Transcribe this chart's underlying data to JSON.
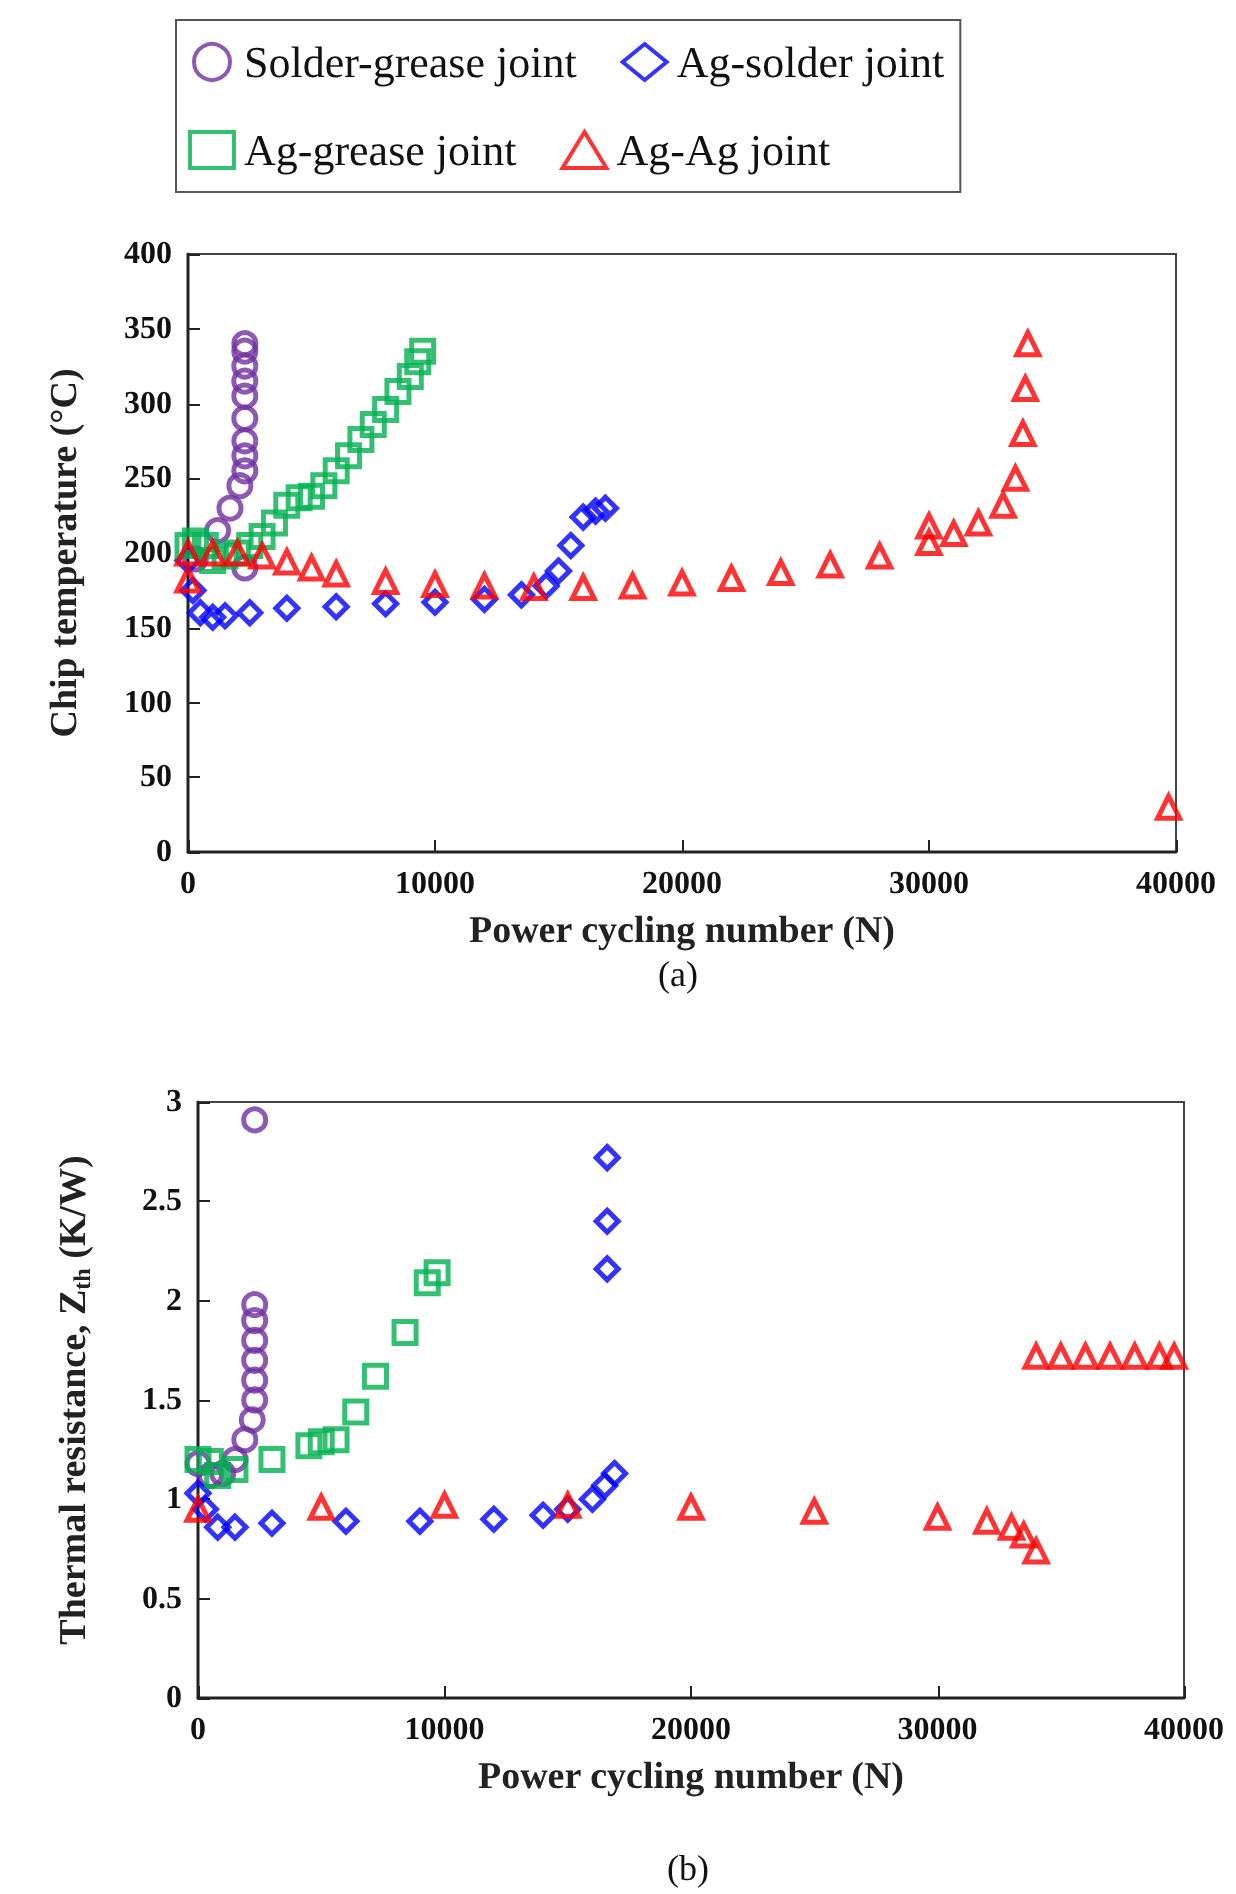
{
  "chart_data": [
    {
      "type": "scatter",
      "xlabel": "Power cycling number (N)",
      "ylabel": "Chip temperature (°C)",
      "legend": "top",
      "grid": false,
      "annotations": [
        "(a)"
      ],
      "xlim": [
        0,
        40000
      ],
      "xticks": [
        0,
        10000,
        20000,
        30000,
        40000
      ],
      "ylim": [
        0,
        400
      ],
      "yticks": [
        0,
        50,
        100,
        150,
        200,
        250,
        300,
        350,
        400
      ],
      "series": [
        {
          "name": "Solder-grease joint",
          "color": "#7030a0",
          "marker": "circle",
          "x": [
            300,
            1200,
            1700,
            2100,
            2300,
            2300,
            2300,
            2300,
            2300,
            2300,
            2300,
            2300,
            2300,
            2300
          ],
          "values": [
            196,
            215,
            230,
            245,
            255,
            265,
            275,
            290,
            305,
            315,
            325,
            335,
            340,
            190
          ]
        },
        {
          "name": "Ag-solder joint",
          "color": "#0000ff",
          "marker": "diamond",
          "x": [
            0,
            200,
            500,
            1000,
            1500,
            2500,
            4000,
            6000,
            8000,
            10000,
            12000,
            13500,
            14500,
            15000,
            15500,
            16000,
            16500,
            16900
          ],
          "values": [
            195,
            175,
            160,
            157,
            158,
            160,
            163,
            164,
            166,
            167,
            169,
            172,
            178,
            188,
            205,
            224,
            228,
            230
          ]
        },
        {
          "name": "Ag-grease joint",
          "color": "#00b050",
          "marker": "square",
          "x": [
            0,
            300,
            700,
            1000,
            1500,
            2000,
            2500,
            3000,
            3500,
            4000,
            4500,
            5000,
            5500,
            6000,
            6500,
            7000,
            7500,
            8000,
            8500,
            9000,
            9300,
            9500
          ],
          "values": [
            205,
            208,
            205,
            195,
            198,
            200,
            205,
            211,
            220,
            232,
            237,
            238,
            245,
            255,
            265,
            276,
            286,
            296,
            308,
            318,
            328,
            335
          ]
        },
        {
          "name": "Ag-Ag joint",
          "color": "#ff0000",
          "marker": "triangle",
          "x": [
            0,
            0,
            1000,
            2000,
            3000,
            4000,
            5000,
            6000,
            8000,
            10000,
            12000,
            14000,
            16000,
            18000,
            20000,
            22000,
            24000,
            26000,
            28000,
            30000,
            30000,
            31000,
            32000,
            33000,
            33500,
            33800,
            33900,
            34000,
            39700
          ],
          "values": [
            182,
            200,
            200,
            200,
            198,
            194,
            190,
            186,
            181,
            179,
            178,
            177,
            177,
            178,
            180,
            183,
            187,
            192,
            198,
            207,
            218,
            213,
            220,
            232,
            250,
            280,
            310,
            340,
            30
          ]
        }
      ]
    },
    {
      "type": "scatter",
      "xlabel": "Power cycling number (N)",
      "ylabel": "Thermal resistance, Z$_{th}$ (K/W)",
      "legend": false,
      "grid": false,
      "annotations": [
        "(b)"
      ],
      "xlim": [
        0,
        40000
      ],
      "xticks": [
        0,
        10000,
        20000,
        30000,
        40000
      ],
      "ylim": [
        0,
        3
      ],
      "yticks": [
        0,
        0.5,
        1,
        1.5,
        2,
        2.5,
        3
      ],
      "series": [
        {
          "color": "#7030a0",
          "marker": "circle",
          "x": [
            0,
            500,
            1000,
            1500,
            1900,
            2200,
            2300,
            2300,
            2300,
            2300,
            2300,
            2300,
            2300
          ],
          "values": [
            1.18,
            1.12,
            1.13,
            1.2,
            1.3,
            1.4,
            1.5,
            1.6,
            1.7,
            1.8,
            1.9,
            1.98,
            2.91
          ]
        },
        {
          "color": "#0000ff",
          "marker": "diamond",
          "x": [
            0,
            300,
            800,
            1500,
            3000,
            6000,
            9000,
            12000,
            14000,
            15000,
            16000,
            16500,
            16900,
            16600,
            16600,
            16600
          ],
          "values": [
            1.03,
            0.95,
            0.86,
            0.86,
            0.88,
            0.89,
            0.89,
            0.9,
            0.92,
            0.95,
            1.0,
            1.07,
            1.13,
            2.72,
            2.4,
            2.16
          ]
        },
        {
          "color": "#00b050",
          "marker": "square",
          "x": [
            0,
            500,
            800,
            1500,
            3000,
            4500,
            5000,
            5600,
            6400,
            7200,
            8400,
            9300,
            9700
          ],
          "values": [
            1.2,
            1.19,
            1.12,
            1.15,
            1.2,
            1.27,
            1.29,
            1.3,
            1.44,
            1.62,
            1.84,
            2.09,
            2.14
          ]
        },
        {
          "color": "#ff0000",
          "marker": "triangle",
          "x": [
            0,
            5000,
            10000,
            15000,
            20000,
            25000,
            30000,
            32000,
            33000,
            33500,
            34000,
            34000,
            35000,
            36000,
            37000,
            38000,
            39000,
            39600
          ],
          "values": [
            0.95,
            0.96,
            0.97,
            0.97,
            0.96,
            0.94,
            0.91,
            0.89,
            0.86,
            0.82,
            0.74,
            1.72,
            1.72,
            1.72,
            1.72,
            1.72,
            1.72,
            1.72
          ]
        }
      ]
    }
  ]
}
